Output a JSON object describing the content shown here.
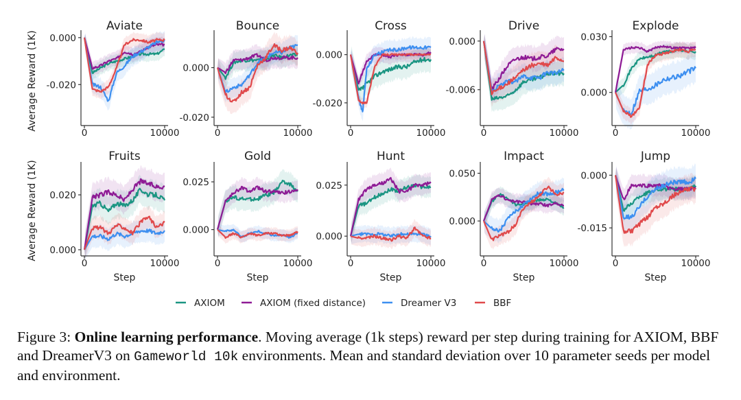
{
  "figure": {
    "legend": [
      {
        "name": "AXIOM",
        "color": "#1a9582"
      },
      {
        "name": "AXIOM (fixed distance)",
        "color": "#8e1b95"
      },
      {
        "name": "Dreamer V3",
        "color": "#3d8ff0"
      },
      {
        "name": "BBF",
        "color": "#e0494b"
      }
    ],
    "ylabel": "Average Reward (1K)",
    "xlabel": "Step"
  },
  "caption": {
    "prefix": "Figure 3: ",
    "bold": "Online learning performance",
    "text1": ". Moving average (1k steps) reward per step during training for AXIOM, BBF and DreamerV3 on ",
    "mono": "Gameworld 10k",
    "text2": " environments. Mean and standard deviation over 10 parameter seeds per model and environment."
  },
  "chart_data": [
    {
      "type": "line",
      "title": "Aviate",
      "xlabel": "",
      "ylabel": "Average Reward (1K)",
      "xlim": [
        0,
        10000
      ],
      "ylim": [
        -0.036,
        0.002
      ],
      "xticks": [
        "0",
        "10000"
      ],
      "yticks": [
        {
          "v": 0.0,
          "label": "0.000"
        },
        {
          "v": -0.02,
          "label": "-0.020"
        }
      ],
      "x": [
        0,
        1000,
        2000,
        3000,
        4000,
        5000,
        6000,
        7000,
        8000,
        9000,
        10000
      ],
      "series": [
        {
          "name": "AXIOM",
          "values": [
            0,
            -0.015,
            -0.013,
            -0.011,
            -0.01,
            -0.009,
            -0.008,
            -0.007,
            -0.007,
            -0.007,
            -0.005
          ],
          "std": 0.003
        },
        {
          "name": "AXIOM (fixed distance)",
          "values": [
            0,
            -0.013,
            -0.012,
            -0.01,
            -0.009,
            -0.006,
            -0.007,
            -0.006,
            -0.004,
            -0.003,
            -0.003
          ],
          "std": 0.003
        },
        {
          "name": "Dreamer V3",
          "values": [
            0,
            -0.02,
            -0.021,
            -0.027,
            -0.015,
            -0.012,
            -0.008,
            -0.006,
            -0.004,
            -0.002,
            -0.001
          ],
          "std": 0.004
        },
        {
          "name": "BBF",
          "values": [
            0,
            -0.022,
            -0.023,
            -0.021,
            -0.013,
            -0.003,
            -0.001,
            -0.001,
            -0.002,
            -0.001,
            -0.001
          ],
          "std": 0.003
        }
      ]
    },
    {
      "type": "line",
      "title": "Bounce",
      "xlabel": "",
      "ylabel": "",
      "xlim": [
        0,
        10000
      ],
      "ylim": [
        -0.022,
        0.014
      ],
      "xticks": [
        "0",
        "10000"
      ],
      "yticks": [
        {
          "v": 0.0,
          "label": "0.000"
        },
        {
          "v": -0.02,
          "label": "-0.020"
        }
      ],
      "x": [
        0,
        1000,
        2000,
        3000,
        4000,
        5000,
        6000,
        7000,
        8000,
        9000,
        10000
      ],
      "series": [
        {
          "name": "AXIOM",
          "values": [
            0,
            -0.004,
            0.002,
            0.003,
            0.003,
            0.003,
            0.003,
            0.005,
            0.004,
            0.005,
            0.005
          ],
          "std": 0.004
        },
        {
          "name": "AXIOM (fixed distance)",
          "values": [
            0,
            -0.002,
            0.003,
            0.003,
            0.004,
            0.005,
            0.003,
            0.004,
            0.004,
            0.004,
            0.004
          ],
          "std": 0.004
        },
        {
          "name": "Dreamer V3",
          "values": [
            0,
            -0.01,
            -0.008,
            -0.007,
            -0.003,
            0.002,
            0.004,
            0.006,
            0.006,
            0.008,
            0.009
          ],
          "std": 0.004
        },
        {
          "name": "BBF",
          "values": [
            0,
            -0.011,
            -0.014,
            -0.01,
            -0.008,
            0.001,
            0.004,
            0.009,
            0.007,
            0.008,
            0.006
          ],
          "std": 0.005
        }
      ]
    },
    {
      "type": "line",
      "title": "Cross",
      "xlabel": "",
      "ylabel": "",
      "xlim": [
        0,
        10000
      ],
      "ylim": [
        -0.028,
        0.009
      ],
      "xticks": [
        "0",
        "10000"
      ],
      "yticks": [
        {
          "v": 0.0,
          "label": "0.000"
        },
        {
          "v": -0.02,
          "label": "-0.020"
        }
      ],
      "x": [
        0,
        1000,
        1500,
        2000,
        3000,
        4000,
        5000,
        6000,
        7000,
        8000,
        9000,
        10000
      ],
      "series": [
        {
          "name": "AXIOM",
          "values": [
            0,
            -0.015,
            -0.014,
            -0.012,
            -0.009,
            -0.007,
            -0.006,
            -0.005,
            -0.005,
            -0.003,
            -0.002,
            -0.002
          ],
          "std": 0.005
        },
        {
          "name": "AXIOM (fixed distance)",
          "values": [
            0,
            -0.012,
            -0.007,
            -0.003,
            0.0,
            0.0,
            -0.001,
            0.0,
            0.0,
            0.0,
            0.0,
            0.001
          ],
          "std": 0.003
        },
        {
          "name": "Dreamer V3",
          "values": [
            0,
            -0.018,
            -0.024,
            -0.006,
            0.0,
            0.001,
            0.002,
            0.002,
            0.003,
            0.003,
            0.003,
            0.003
          ],
          "std": 0.004
        },
        {
          "name": "BBF",
          "values": [
            0,
            -0.019,
            -0.02,
            -0.02,
            -0.005,
            0.0,
            0.0,
            0.0,
            0.0,
            0.0,
            0.0,
            0.0
          ],
          "std": 0.002
        }
      ]
    },
    {
      "type": "line",
      "title": "Drive",
      "xlabel": "",
      "ylabel": "",
      "xlim": [
        0,
        10000
      ],
      "ylim": [
        -0.01,
        0.001
      ],
      "xticks": [
        "0",
        "10000"
      ],
      "yticks": [
        {
          "v": 0.0,
          "label": "0.000"
        },
        {
          "v": -0.006,
          "label": "-0.006"
        }
      ],
      "x": [
        0,
        1000,
        2000,
        3000,
        4000,
        5000,
        6000,
        7000,
        8000,
        9000,
        10000
      ],
      "series": [
        {
          "name": "AXIOM",
          "values": [
            0,
            -0.0072,
            -0.007,
            -0.0068,
            -0.006,
            -0.005,
            -0.0048,
            -0.0045,
            -0.004,
            -0.004,
            -0.004
          ],
          "std": 0.0015
        },
        {
          "name": "AXIOM (fixed distance)",
          "values": [
            0,
            -0.006,
            -0.0045,
            -0.003,
            -0.0022,
            -0.002,
            -0.0022,
            -0.002,
            -0.0018,
            -0.001,
            -0.001
          ],
          "std": 0.0015
        },
        {
          "name": "Dreamer V3",
          "values": [
            0,
            -0.0062,
            -0.0055,
            -0.005,
            -0.005,
            -0.0043,
            -0.0045,
            -0.0045,
            -0.0038,
            -0.004,
            -0.0035
          ],
          "std": 0.0015
        },
        {
          "name": "BBF",
          "values": [
            0,
            -0.0065,
            -0.0058,
            -0.0052,
            -0.0045,
            -0.0035,
            -0.003,
            -0.0028,
            -0.003,
            -0.002,
            -0.0025
          ],
          "std": 0.0015
        }
      ]
    },
    {
      "type": "line",
      "title": "Explode",
      "xlabel": "",
      "ylabel": "",
      "xlim": [
        0,
        10000
      ],
      "ylim": [
        -0.016,
        0.032
      ],
      "xticks": [
        "0",
        "10000"
      ],
      "yticks": [
        {
          "v": 0.03,
          "label": "0.030"
        },
        {
          "v": 0.0,
          "label": "0.000"
        }
      ],
      "x": [
        0,
        1000,
        2000,
        3000,
        4000,
        5000,
        6000,
        7000,
        8000,
        9000,
        10000
      ],
      "series": [
        {
          "name": "AXIOM",
          "values": [
            0,
            0.004,
            0.013,
            0.018,
            0.019,
            0.02,
            0.022,
            0.022,
            0.023,
            0.022,
            0.022
          ],
          "std": 0.004
        },
        {
          "name": "AXIOM (fixed distance)",
          "values": [
            0,
            0.023,
            0.024,
            0.024,
            0.022,
            0.024,
            0.025,
            0.024,
            0.024,
            0.024,
            0.024
          ],
          "std": 0.003
        },
        {
          "name": "Dreamer V3",
          "values": [
            0,
            -0.01,
            -0.011,
            0.001,
            0.002,
            0.004,
            0.007,
            0.008,
            0.009,
            0.011,
            0.013
          ],
          "std": 0.008
        },
        {
          "name": "BBF",
          "values": [
            0,
            -0.01,
            -0.013,
            -0.008,
            0.015,
            0.02,
            0.021,
            0.022,
            0.023,
            0.022,
            0.023
          ],
          "std": 0.004
        }
      ]
    },
    {
      "type": "line",
      "title": "Fruits",
      "xlabel": "Step",
      "ylabel": "Average Reward (1K)",
      "xlim": [
        0,
        10000
      ],
      "ylim": [
        -0.001,
        0.031
      ],
      "xticks": [
        "0",
        "10000"
      ],
      "yticks": [
        {
          "v": 0.02,
          "label": "0.020"
        },
        {
          "v": 0.0,
          "label": "0.000"
        }
      ],
      "x": [
        0,
        1000,
        2000,
        3000,
        4000,
        5000,
        6000,
        7000,
        8000,
        9000,
        10000
      ],
      "series": [
        {
          "name": "AXIOM",
          "values": [
            0,
            0.016,
            0.017,
            0.014,
            0.017,
            0.016,
            0.018,
            0.022,
            0.02,
            0.02,
            0.018
          ],
          "std": 0.005
        },
        {
          "name": "AXIOM (fixed distance)",
          "values": [
            0,
            0.019,
            0.02,
            0.021,
            0.02,
            0.018,
            0.022,
            0.025,
            0.024,
            0.023,
            0.023
          ],
          "std": 0.005
        },
        {
          "name": "Dreamer V3",
          "values": [
            0,
            0.005,
            0.005,
            0.004,
            0.006,
            0.005,
            0.006,
            0.007,
            0.007,
            0.006,
            0.007
          ],
          "std": 0.004
        },
        {
          "name": "BBF",
          "values": [
            0,
            0.008,
            0.008,
            0.006,
            0.009,
            0.008,
            0.006,
            0.01,
            0.012,
            0.008,
            0.01
          ],
          "std": 0.004
        }
      ]
    },
    {
      "type": "line",
      "title": "Gold",
      "xlabel": "Step",
      "ylabel": "",
      "xlim": [
        0,
        10000
      ],
      "ylim": [
        -0.012,
        0.034
      ],
      "xticks": [
        "0",
        "10000"
      ],
      "yticks": [
        {
          "v": 0.025,
          "label": "0.025"
        },
        {
          "v": 0.0,
          "label": "0.000"
        }
      ],
      "x": [
        0,
        1000,
        2000,
        3000,
        4000,
        5000,
        6000,
        7000,
        8000,
        9000,
        10000
      ],
      "series": [
        {
          "name": "AXIOM",
          "values": [
            0,
            0.015,
            0.017,
            0.016,
            0.016,
            0.016,
            0.018,
            0.019,
            0.025,
            0.024,
            0.02
          ],
          "std": 0.006
        },
        {
          "name": "AXIOM (fixed distance)",
          "values": [
            0,
            0.015,
            0.019,
            0.022,
            0.02,
            0.022,
            0.02,
            0.02,
            0.019,
            0.02,
            0.021
          ],
          "std": 0.005
        },
        {
          "name": "Dreamer V3",
          "values": [
            0,
            -0.001,
            0.0,
            -0.004,
            -0.002,
            -0.001,
            -0.002,
            -0.003,
            -0.003,
            -0.004,
            -0.002
          ],
          "std": 0.003
        },
        {
          "name": "BBF",
          "values": [
            0,
            -0.004,
            -0.002,
            -0.004,
            -0.002,
            -0.003,
            -0.002,
            -0.002,
            -0.003,
            -0.003,
            -0.001
          ],
          "std": 0.003
        }
      ]
    },
    {
      "type": "line",
      "title": "Hunt",
      "xlabel": "Step",
      "ylabel": "",
      "xlim": [
        0,
        10000
      ],
      "ylim": [
        -0.008,
        0.035
      ],
      "xticks": [
        "0",
        "10000"
      ],
      "yticks": [
        {
          "v": 0.025,
          "label": "0.025"
        },
        {
          "v": 0.0,
          "label": "0.000"
        }
      ],
      "x": [
        0,
        1000,
        2000,
        3000,
        4000,
        5000,
        6000,
        7000,
        8000,
        9000,
        10000
      ],
      "series": [
        {
          "name": "AXIOM",
          "values": [
            0,
            0.015,
            0.016,
            0.019,
            0.021,
            0.023,
            0.022,
            0.024,
            0.025,
            0.024,
            0.024
          ],
          "std": 0.005
        },
        {
          "name": "AXIOM (fixed distance)",
          "values": [
            0,
            0.018,
            0.023,
            0.025,
            0.026,
            0.028,
            0.022,
            0.022,
            0.025,
            0.025,
            0.026
          ],
          "std": 0.005
        },
        {
          "name": "Dreamer V3",
          "values": [
            0,
            0.001,
            0.001,
            0.001,
            0.001,
            0.0,
            0.001,
            0.001,
            0.001,
            0.001,
            0.0
          ],
          "std": 0.004
        },
        {
          "name": "BBF",
          "values": [
            0,
            -0.001,
            -0.001,
            0.0,
            -0.001,
            -0.002,
            0.0,
            -0.001,
            0.004,
            0.0,
            -0.001
          ],
          "std": 0.004
        }
      ]
    },
    {
      "type": "line",
      "title": "Impact",
      "xlabel": "Step",
      "ylabel": "",
      "xlim": [
        0,
        10000
      ],
      "ylim": [
        -0.033,
        0.059
      ],
      "xticks": [
        "0",
        "10000"
      ],
      "yticks": [
        {
          "v": 0.05,
          "label": "0.050"
        },
        {
          "v": 0.0,
          "label": "0.000"
        }
      ],
      "x": [
        0,
        1000,
        2000,
        3000,
        4000,
        5000,
        6000,
        7000,
        8000,
        9000,
        10000
      ],
      "series": [
        {
          "name": "AXIOM",
          "values": [
            0,
            0.02,
            0.028,
            0.024,
            0.017,
            0.018,
            0.02,
            0.022,
            0.023,
            0.018,
            0.014
          ],
          "std": 0.008
        },
        {
          "name": "AXIOM (fixed distance)",
          "values": [
            0,
            0.022,
            0.027,
            0.022,
            0.02,
            0.02,
            0.018,
            0.018,
            0.016,
            0.019,
            0.016
          ],
          "std": 0.008
        },
        {
          "name": "Dreamer V3",
          "values": [
            0,
            -0.008,
            -0.01,
            0.002,
            0.01,
            0.018,
            0.024,
            0.03,
            0.028,
            0.03,
            0.033
          ],
          "std": 0.012
        },
        {
          "name": "BBF",
          "values": [
            0,
            -0.02,
            -0.015,
            -0.012,
            -0.003,
            0.014,
            0.02,
            0.027,
            0.036,
            0.028,
            0.03
          ],
          "std": 0.01
        }
      ]
    },
    {
      "type": "line",
      "title": "Jump",
      "xlabel": "Step",
      "ylabel": "",
      "xlim": [
        0,
        10000
      ],
      "ylim": [
        -0.022,
        0.003
      ],
      "xticks": [
        "0",
        "10000"
      ],
      "yticks": [
        {
          "v": 0.0,
          "label": "0.000"
        },
        {
          "v": -0.015,
          "label": "-0.015"
        }
      ],
      "x": [
        0,
        1000,
        2000,
        3000,
        4000,
        5000,
        6000,
        7000,
        8000,
        9000,
        10000
      ],
      "series": [
        {
          "name": "AXIOM",
          "values": [
            0,
            -0.01,
            -0.008,
            -0.006,
            -0.005,
            -0.004,
            -0.004,
            -0.004,
            -0.004,
            -0.004,
            -0.003
          ],
          "std": 0.003
        },
        {
          "name": "AXIOM (fixed distance)",
          "values": [
            0,
            -0.007,
            -0.003,
            -0.003,
            -0.003,
            -0.003,
            -0.003,
            -0.004,
            -0.004,
            -0.004,
            -0.004
          ],
          "std": 0.003
        },
        {
          "name": "Dreamer V3",
          "values": [
            0,
            -0.012,
            -0.012,
            -0.009,
            -0.006,
            -0.004,
            -0.003,
            -0.002,
            -0.002,
            -0.002,
            -0.001
          ],
          "std": 0.004
        },
        {
          "name": "BBF",
          "values": [
            0,
            -0.016,
            -0.016,
            -0.014,
            -0.012,
            -0.009,
            -0.008,
            -0.006,
            -0.005,
            -0.004,
            -0.004
          ],
          "std": 0.004
        }
      ]
    }
  ]
}
